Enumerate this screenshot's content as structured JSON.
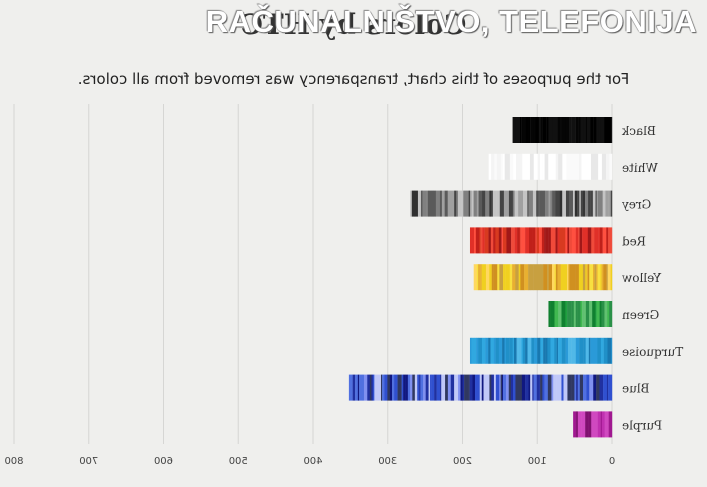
{
  "watermark": "RAČUNALNIŠTVO, TELEFONIJA",
  "chart_data": {
    "type": "bar",
    "orientation": "horizontal",
    "mirrored": true,
    "title": "Colors by HTC",
    "subtitle": "For the purposes of this chart, transparency was removed from all colors.",
    "categories": [
      "Black",
      "White",
      "Grey",
      "Red",
      "Yellow",
      "Green",
      "Turquoise",
      "Blue",
      "Purple"
    ],
    "values": [
      133,
      165,
      270,
      190,
      185,
      85,
      190,
      352,
      52
    ],
    "bar_colors": [
      [
        "#050505",
        "#111111",
        "#000000"
      ],
      [
        "#ffffff",
        "#f4f4f4",
        "#e8e8e8",
        "#fafafa"
      ],
      [
        "#303030",
        "#5a5a5a",
        "#808080",
        "#a0a0a0",
        "#c4c4c4",
        "#444444"
      ],
      [
        "#c0201a",
        "#e03028",
        "#a01818",
        "#f04a3a",
        "#d83a20",
        "#ff5040"
      ],
      [
        "#f0d020",
        "#e8b030",
        "#d09020",
        "#f8e040",
        "#c8a040",
        "#ffd860"
      ],
      [
        "#20a040",
        "#40b850",
        "#108030",
        "#60c070",
        "#2a9048"
      ],
      [
        "#2090c8",
        "#30a8e0",
        "#1878b0",
        "#50b8e8",
        "#2a9ad8"
      ],
      [
        "#2030a0",
        "#3050d0",
        "#101880",
        "#5070e0",
        "#8090f0",
        "#c0c8f8",
        "#303860"
      ],
      [
        "#a01890",
        "#c030b0",
        "#d048c0",
        "#801070"
      ]
    ],
    "x_ticks": [
      0,
      100,
      200,
      300,
      400,
      500,
      600,
      700,
      800
    ],
    "xlim": [
      0,
      800
    ],
    "grid": true,
    "xlabel": "",
    "ylabel": ""
  }
}
